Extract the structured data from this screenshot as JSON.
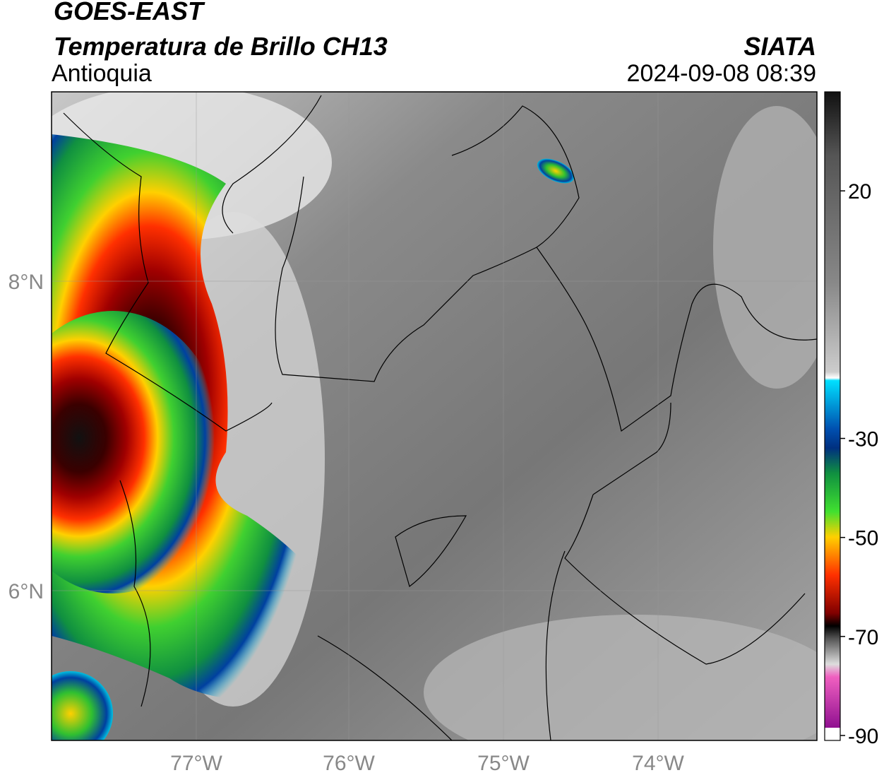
{
  "header": {
    "title": "GOES-EAST",
    "subtitle": "Temperatura de Brillo CH13",
    "region": "Antioquia",
    "source": "SIATA",
    "datetime": "2024-09-08 08:39"
  },
  "map": {
    "lat_labels": [
      "8°N",
      "6°N"
    ],
    "lon_labels": [
      "77°W",
      "76°W",
      "75°W",
      "74°W"
    ]
  },
  "colorbar": {
    "range": [
      -91,
      40
    ],
    "ticks": [
      20,
      -30,
      -50,
      -70,
      -90
    ]
  }
}
